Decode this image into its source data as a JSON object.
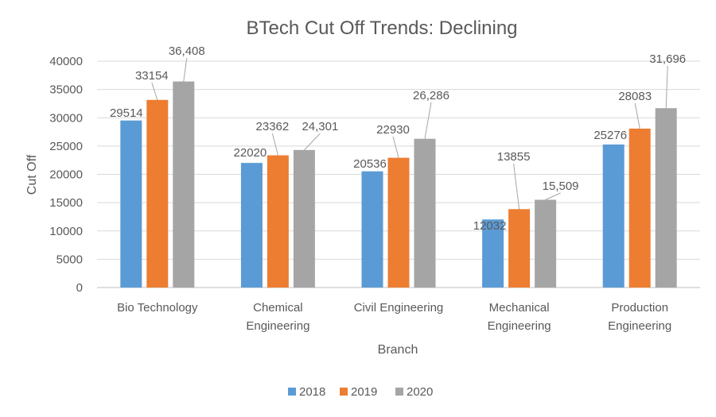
{
  "chart_data": {
    "type": "bar",
    "title": "BTech Cut Off Trends: Declining",
    "xlabel": "Branch",
    "ylabel": "Cut Off",
    "ylim": [
      0,
      40000
    ],
    "yticks": [
      0,
      5000,
      10000,
      15000,
      20000,
      25000,
      30000,
      35000,
      40000
    ],
    "grid": true,
    "legend_position": "bottom",
    "categories": [
      [
        "Bio Technology"
      ],
      [
        "Chemical",
        "Engineering"
      ],
      [
        "Civil Engineering"
      ],
      [
        "Mechanical",
        "Engineering"
      ],
      [
        "Production",
        "Engineering"
      ]
    ],
    "series": [
      {
        "name": "2018",
        "color": "#5b9bd5",
        "values": [
          29514,
          22020,
          20536,
          12032,
          25276
        ],
        "labels": [
          "29514",
          "22020",
          "20536",
          "12032",
          "25276"
        ]
      },
      {
        "name": "2019",
        "color": "#ed7d31",
        "values": [
          33154,
          23362,
          22930,
          13855,
          28083
        ],
        "labels": [
          "33154",
          "23362",
          "22930",
          "13855",
          "28083"
        ]
      },
      {
        "name": "2020",
        "color": "#a5a5a5",
        "values": [
          36408,
          24301,
          26286,
          15509,
          31696
        ],
        "labels": [
          "36,408",
          "24,301",
          "26,286",
          "15,509",
          "31,696"
        ]
      }
    ]
  }
}
